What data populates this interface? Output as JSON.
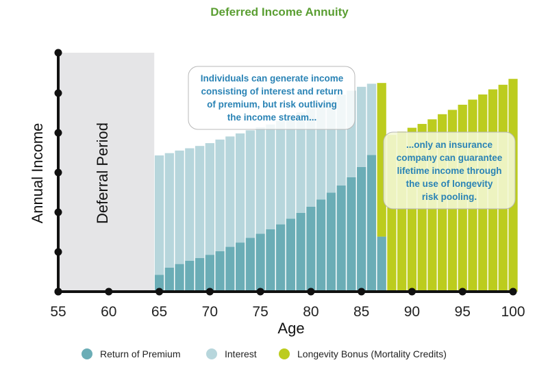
{
  "chart_data": {
    "type": "bar",
    "stacked": true,
    "title": "Deferred Income Annuity",
    "xlabel": "Age",
    "ylabel": "Annual Income",
    "xlim": [
      55,
      100
    ],
    "ylim": [
      0,
      100
    ],
    "x_ticks": [
      55,
      60,
      65,
      70,
      75,
      80,
      85,
      90,
      95,
      100
    ],
    "colors": {
      "title": "#5a9e32",
      "premium": "#6badb6",
      "interest": "#b7d6dc",
      "longevity": "#bccc1e",
      "note_text": "#2a83b5",
      "deferral_bg": "#e5e5e7"
    },
    "deferral_period": {
      "label": "Deferral Period",
      "from_age": 55,
      "to_age": 64.5
    },
    "ages": [
      65,
      66,
      67,
      68,
      69,
      70,
      71,
      72,
      73,
      74,
      75,
      76,
      77,
      78,
      79,
      80,
      81,
      82,
      83,
      84,
      85,
      86,
      87,
      88,
      89,
      90,
      91,
      92,
      93,
      94,
      95,
      96,
      97,
      98,
      99,
      100
    ],
    "series": [
      {
        "name": "Return of Premium",
        "key": "premium",
        "values": [
          6.6,
          9.4,
          10.8,
          12.1,
          13.1,
          14.4,
          15.8,
          17.5,
          19.2,
          21.0,
          22.6,
          24.4,
          26.3,
          28.5,
          30.8,
          33.2,
          36.0,
          38.7,
          41.5,
          44.7,
          48.7,
          53.4,
          21.5,
          0,
          0,
          0,
          0,
          0,
          0,
          0,
          0,
          0,
          0,
          0,
          0,
          0
        ]
      },
      {
        "name": "Interest",
        "key": "interest",
        "values": [
          46.6,
          44.7,
          44.3,
          43.9,
          43.8,
          43.6,
          43.6,
          43.1,
          42.6,
          42.0,
          41.6,
          40.9,
          40.4,
          39.6,
          39.2,
          38.4,
          37.2,
          36.2,
          35.4,
          33.8,
          31.3,
          27.8,
          0,
          0,
          0,
          0,
          0,
          0,
          0,
          0,
          0,
          0,
          0,
          0,
          0,
          0
        ]
      },
      {
        "name": "Longevity Bonus (Mortality Credits)",
        "key": "longevity",
        "values": [
          0,
          0,
          0,
          0,
          0,
          0,
          0,
          0,
          0,
          0,
          0,
          0,
          0,
          0,
          0,
          0,
          0,
          0,
          0,
          0,
          0,
          0,
          60.0,
          61.2,
          62.5,
          64.0,
          65.5,
          67.3,
          69.3,
          71.0,
          73.0,
          75.0,
          77.0,
          79.0,
          80.8,
          83.1
        ]
      }
    ],
    "legend": [
      {
        "label": "Return of Premium",
        "key": "premium"
      },
      {
        "label": "Interest",
        "key": "interest"
      },
      {
        "label": "Longevity Bonus (Mortality Credits)",
        "key": "longevity"
      }
    ],
    "annotations": [
      {
        "id": "note-left",
        "lines": [
          "Individuals can generate income",
          "consisting of interest and return",
          "of premium, but risk outliving",
          "the income stream..."
        ]
      },
      {
        "id": "note-right",
        "lines": [
          "...only an insurance",
          "company can guarantee",
          "lifetime income through",
          "the use of longevity",
          "risk pooling."
        ]
      }
    ]
  }
}
